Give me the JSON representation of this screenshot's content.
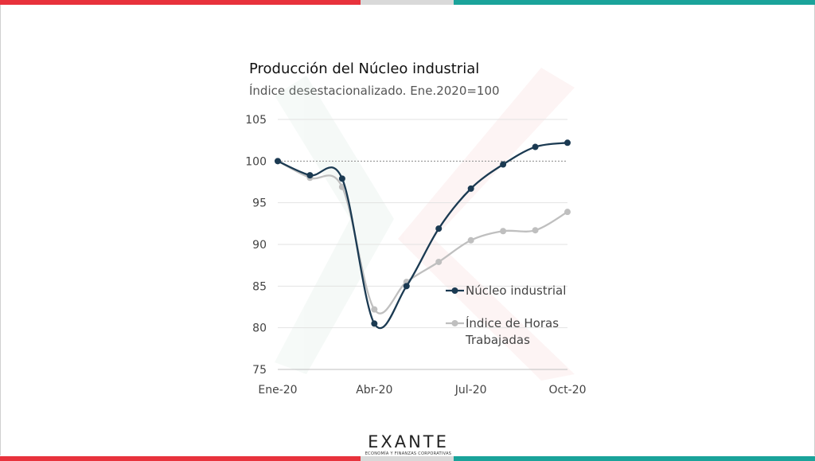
{
  "colors": {
    "brand_red": "#e8323c",
    "brand_gray": "#d9d9d9",
    "brand_teal": "#1aa39a",
    "series_dark": "#1b3a52",
    "series_light": "#bfbfbf"
  },
  "logo": {
    "word": "EXANTE",
    "tagline": "ECONOMÍA Y FINANZAS CORPORATIVAS"
  },
  "chart_data": {
    "type": "line",
    "title": "Producción del Núcleo industrial",
    "subtitle": "Índice desestacionalizado. Ene.2020=100",
    "xlabel": "",
    "ylabel": "",
    "x": [
      "Ene-20",
      "Feb-20",
      "Mar-20",
      "Abr-20",
      "May-20",
      "Jun-20",
      "Jul-20",
      "Ago-20",
      "Sep-20",
      "Oct-20"
    ],
    "x_tick_labels": [
      "Ene-20",
      "Abr-20",
      "Jul-20",
      "Oct-20"
    ],
    "ylim": [
      75,
      105
    ],
    "y_ticks": [
      75,
      80,
      85,
      90,
      95,
      100,
      105
    ],
    "reference_line": 100,
    "grid": true,
    "legend_position": "bottom-right",
    "series": [
      {
        "name": "Núcleo industrial",
        "color": "#1b3a52",
        "values": [
          100,
          98.3,
          97.9,
          80.5,
          85.0,
          91.9,
          96.7,
          99.6,
          101.7,
          102.2
        ]
      },
      {
        "name": "Índice de Horas Trabajadas",
        "color": "#bfbfbf",
        "values": [
          100,
          98.0,
          96.9,
          82.2,
          85.5,
          87.9,
          90.5,
          91.6,
          91.7,
          93.9
        ]
      }
    ]
  }
}
